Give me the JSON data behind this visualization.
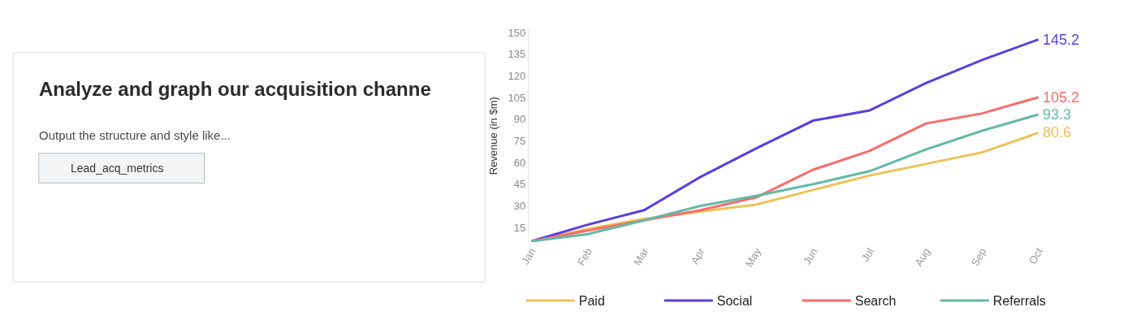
{
  "chart_data": {
    "type": "line",
    "ylabel": "Revenue (in $m)",
    "categories": [
      "Jan",
      "Feb",
      "Mar",
      "Apr",
      "May",
      "Jun",
      "Jul",
      "Aug",
      "Sep",
      "Oct"
    ],
    "ylim": [
      5,
      152
    ],
    "yticks": [
      15,
      30,
      45,
      60,
      75,
      90,
      105,
      120,
      135,
      150
    ],
    "legend": "bottom",
    "marker": "none",
    "line_style": "solid",
    "series": [
      {
        "name": "Paid",
        "color": "#ecc25a",
        "values": [
          5.5,
          14,
          21,
          26,
          31,
          41,
          51,
          59,
          67,
          80.6
        ],
        "value_labels": [
          null,
          null,
          null,
          null,
          null,
          null,
          null,
          null,
          null,
          "80.6"
        ]
      },
      {
        "name": "Social",
        "color": "#5b3fdc",
        "values": [
          5.5,
          17,
          27,
          50,
          70,
          89,
          96,
          115,
          131,
          145.2
        ],
        "value_labels": [
          null,
          null,
          null,
          null,
          null,
          null,
          null,
          null,
          null,
          "145.2"
        ]
      },
      {
        "name": "Search",
        "color": "#fb6b6b",
        "values": [
          5.5,
          13,
          20,
          27,
          36,
          55,
          68,
          87,
          94,
          105.2
        ],
        "value_labels": [
          null,
          null,
          null,
          null,
          null,
          null,
          null,
          null,
          null,
          "105.2"
        ]
      },
      {
        "name": "Referrals",
        "color": "#63b9a6",
        "values": [
          5.5,
          10.5,
          20,
          30,
          37,
          45,
          54,
          69,
          82,
          93.3
        ],
        "value_labels": [
          null,
          null,
          null,
          null,
          null,
          null,
          null,
          null,
          null,
          "93.3"
        ]
      }
    ],
    "annotations": [
      "Analyze and graph our acquisition channe",
      "Output the structure and style like...",
      "Lead_acq_metrics"
    ]
  }
}
